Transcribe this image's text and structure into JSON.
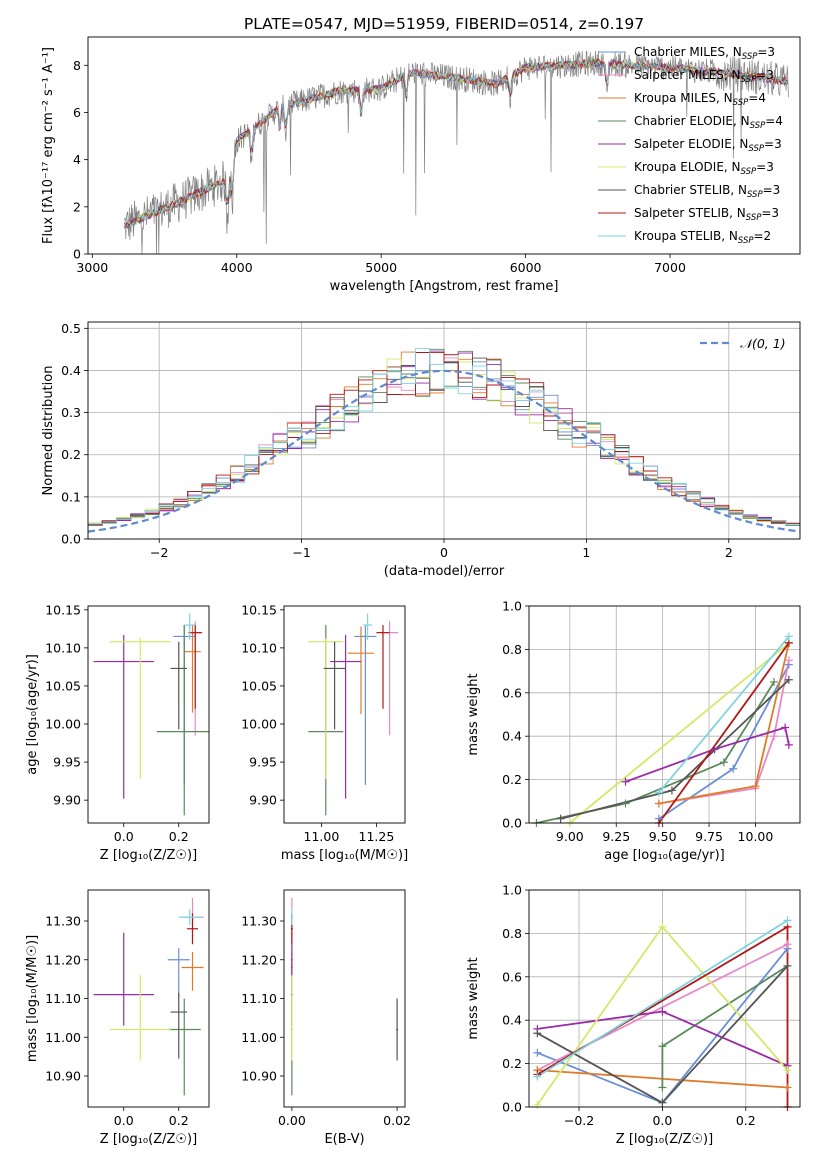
{
  "figure": {
    "title": "PLATE=0547, MJD=51959, FIBERID=0514, z=0.197"
  },
  "colors": {
    "chabrier_miles": "#6a8fd8",
    "salpeter_miles": "#e88ac6",
    "kroupa_miles": "#e07b2a",
    "chabrier_elodie": "#5a8a5a",
    "salpeter_elodie": "#9b2aa8",
    "kroupa_elodie": "#d4e86a",
    "chabrier_stelib": "#555555",
    "salpeter_stelib": "#b01818",
    "kroupa_stelib": "#7fd4e0",
    "normal": "#5f8ad0"
  },
  "legend_top": [
    {
      "text": "Chabrier MILES, N",
      "sub": "SSP",
      "tail": "=3",
      "color_key": "chabrier_miles"
    },
    {
      "text": "Salpeter MILES, N",
      "sub": "SSP",
      "tail": "=3",
      "color_key": "salpeter_miles"
    },
    {
      "text": "Kroupa MILES, N",
      "sub": "SSP",
      "tail": "=4",
      "color_key": "kroupa_miles"
    },
    {
      "text": "Chabrier ELODIE, N",
      "sub": "SSP",
      "tail": "=4",
      "color_key": "chabrier_elodie"
    },
    {
      "text": "Salpeter ELODIE, N",
      "sub": "SSP",
      "tail": "=3",
      "color_key": "salpeter_elodie"
    },
    {
      "text": "Kroupa ELODIE, N",
      "sub": "SSP",
      "tail": "=3",
      "color_key": "kroupa_elodie"
    },
    {
      "text": "Chabrier STELIB, N",
      "sub": "SSP",
      "tail": "=3",
      "color_key": "chabrier_stelib"
    },
    {
      "text": "Salpeter STELIB, N",
      "sub": "SSP",
      "tail": "=3",
      "color_key": "salpeter_stelib"
    },
    {
      "text": "Kroupa STELIB, N",
      "sub": "SSP",
      "tail": "=2",
      "color_key": "kroupa_stelib"
    }
  ],
  "legend_hist": {
    "label": "𝒩(0, 1)"
  },
  "chart_data": [
    {
      "id": "spectrum",
      "type": "line",
      "xlabel": "wavelength [Angstrom, rest frame]",
      "ylabel": "Flux [fλ10⁻¹⁷ erg cm⁻² s⁻¹ A⁻¹]",
      "xlim": [
        2970,
        7900
      ],
      "ylim": [
        0,
        9.2
      ],
      "xticks": [
        3000,
        4000,
        5000,
        6000,
        7000
      ],
      "yticks": [
        0,
        2,
        4,
        6,
        8
      ],
      "spectrum_start": 3220,
      "spectrum_end": 7820,
      "continuum": [
        [
          3220,
          1.2
        ],
        [
          3600,
          2.2
        ],
        [
          3950,
          3.2
        ],
        [
          4000,
          4.8
        ],
        [
          4300,
          6.2
        ],
        [
          4700,
          6.9
        ],
        [
          5000,
          7.0
        ],
        [
          5200,
          7.7
        ],
        [
          5600,
          7.4
        ],
        [
          5800,
          7.2
        ],
        [
          6000,
          7.9
        ],
        [
          6500,
          8.1
        ],
        [
          7000,
          7.9
        ],
        [
          7500,
          7.6
        ],
        [
          7820,
          7.3
        ]
      ],
      "absorption_lines": [
        [
          3934,
          1.6
        ],
        [
          3969,
          1.7
        ],
        [
          4102,
          1.4
        ],
        [
          4300,
          1.0
        ],
        [
          4340,
          1.2
        ],
        [
          4861,
          1.3
        ],
        [
          5175,
          1.2
        ],
        [
          5893,
          1.0
        ],
        [
          6563,
          1.3
        ]
      ],
      "x_step": 4,
      "noise_amplitude": 0.7
    },
    {
      "id": "residuals",
      "type": "bar",
      "xlabel": "(data-model)/error",
      "ylabel": "Normed distribution",
      "xlim": [
        -2.5,
        2.5
      ],
      "ylim": [
        0,
        0.515
      ],
      "xticks": [
        -2,
        -1,
        0,
        1,
        2
      ],
      "yticks": [
        0.0,
        0.1,
        0.2,
        0.3,
        0.4,
        0.5
      ],
      "grid": true,
      "bin_width": 0.1,
      "normal_curve": {
        "mu": 0,
        "sigma": 1
      }
    },
    {
      "id": "age_vs_Z",
      "type": "scatter",
      "xlabel": "Z [log₁₀(Z/Z☉)]",
      "ylabel": "age  [log₁₀(age/yr)]",
      "xlim": [
        -0.13,
        0.31
      ],
      "ylim": [
        9.87,
        10.155
      ],
      "xticks": [
        0.0,
        0.2
      ],
      "yticks": [
        9.9,
        9.95,
        10.0,
        10.05,
        10.1,
        10.15
      ],
      "points": [
        {
          "model": "chabrier_miles",
          "x": 0.22,
          "xerr": 0.04,
          "y": 10.115,
          "yerr": [
            0.195,
            0.015
          ]
        },
        {
          "model": "salpeter_miles",
          "x": 0.26,
          "xerr": 0.02,
          "y": 10.12,
          "yerr": [
            0.135,
            0.015
          ]
        },
        {
          "model": "kroupa_miles",
          "x": 0.25,
          "xerr": 0.03,
          "y": 10.095,
          "yerr": [
            0.08,
            0.035
          ]
        },
        {
          "model": "chabrier_elodie",
          "x": 0.22,
          "xerr": 0.1,
          "y": 9.99,
          "yerr": [
            0.11,
            0.14
          ]
        },
        {
          "model": "salpeter_elodie",
          "x": 0.0,
          "xerr": 0.11,
          "y": 10.082,
          "yerr": [
            0.18,
            0.035
          ]
        },
        {
          "model": "kroupa_elodie",
          "x": 0.06,
          "xerr": 0.11,
          "y": 10.108,
          "yerr": [
            0.18,
            0.005
          ]
        },
        {
          "model": "chabrier_stelib",
          "x": 0.2,
          "xerr": 0.03,
          "y": 10.073,
          "yerr": [
            0.08,
            0.035
          ]
        },
        {
          "model": "salpeter_stelib",
          "x": 0.26,
          "xerr": 0.025,
          "y": 10.12,
          "yerr": [
            0.1,
            0.01
          ]
        },
        {
          "model": "kroupa_stelib",
          "x": 0.24,
          "xerr": 0.02,
          "y": 10.13,
          "yerr": [
            0.02,
            0.015
          ]
        }
      ]
    },
    {
      "id": "age_vs_mass",
      "type": "scatter",
      "xlabel": "mass [log₁₀(M/M☉)]",
      "ylabel": "",
      "xlim": [
        10.83,
        11.38
      ],
      "ylim": [
        9.87,
        10.155
      ],
      "xticks": [
        11.0,
        11.25
      ],
      "yticks": [
        9.9,
        9.95,
        10.0,
        10.05,
        10.1,
        10.15
      ],
      "points": [
        {
          "model": "chabrier_miles",
          "x": 11.2,
          "xerr": 0.05,
          "y": 10.115,
          "yerr": [
            0.195,
            0.015
          ]
        },
        {
          "model": "salpeter_miles",
          "x": 11.31,
          "xerr": 0.04,
          "y": 10.12,
          "yerr": [
            0.135,
            0.015
          ]
        },
        {
          "model": "kroupa_miles",
          "x": 11.18,
          "xerr": 0.06,
          "y": 10.093,
          "yerr": [
            0.08,
            0.035
          ]
        },
        {
          "model": "chabrier_elodie",
          "x": 11.02,
          "xerr": 0.08,
          "y": 9.99,
          "yerr": [
            0.11,
            0.14
          ]
        },
        {
          "model": "salpeter_elodie",
          "x": 11.11,
          "xerr": 0.07,
          "y": 10.082,
          "yerr": [
            0.18,
            0.035
          ]
        },
        {
          "model": "kroupa_elodie",
          "x": 11.02,
          "xerr": 0.08,
          "y": 10.108,
          "yerr": [
            0.18,
            0.005
          ]
        },
        {
          "model": "chabrier_stelib",
          "x": 11.06,
          "xerr": 0.05,
          "y": 10.073,
          "yerr": [
            0.08,
            0.035
          ]
        },
        {
          "model": "salpeter_stelib",
          "x": 11.28,
          "xerr": 0.03,
          "y": 10.12,
          "yerr": [
            0.1,
            0.01
          ]
        },
        {
          "model": "kroupa_stelib",
          "x": 11.21,
          "xerr": 0.02,
          "y": 10.13,
          "yerr": [
            0.02,
            0.015
          ]
        }
      ]
    },
    {
      "id": "weight_vs_age",
      "type": "line",
      "xlabel": "age  [log₁₀(age/yr)]",
      "ylabel": "mass weight",
      "xlim": [
        8.78,
        10.24
      ],
      "ylim": [
        0,
        1.0
      ],
      "xticks": [
        9.0,
        9.25,
        9.5,
        9.75,
        10.0
      ],
      "yticks": [
        0.0,
        0.2,
        0.4,
        0.6,
        0.8,
        1.0
      ],
      "grid": true,
      "series": [
        {
          "model": "chabrier_miles",
          "points": [
            [
              9.48,
              0.02
            ],
            [
              9.88,
              0.25
            ],
            [
              10.18,
              0.73
            ]
          ]
        },
        {
          "model": "salpeter_miles",
          "points": [
            [
              9.48,
              0.09
            ],
            [
              10.0,
              0.16
            ],
            [
              10.1,
              0.4
            ],
            [
              10.18,
              0.75
            ]
          ]
        },
        {
          "model": "kroupa_miles",
          "points": [
            [
              9.48,
              0.09
            ],
            [
              10.0,
              0.17
            ],
            [
              10.18,
              0.83
            ]
          ]
        },
        {
          "model": "chabrier_elodie",
          "points": [
            [
              8.82,
              0.0
            ],
            [
              9.3,
              0.09
            ],
            [
              9.83,
              0.28
            ],
            [
              10.1,
              0.65
            ]
          ]
        },
        {
          "model": "salpeter_elodie",
          "points": [
            [
              9.3,
              0.19
            ],
            [
              9.78,
              0.34
            ],
            [
              10.16,
              0.44
            ],
            [
              10.18,
              0.36
            ]
          ]
        },
        {
          "model": "kroupa_elodie",
          "points": [
            [
              9.0,
              0.0
            ],
            [
              10.18,
              0.83
            ]
          ]
        },
        {
          "model": "chabrier_stelib",
          "points": [
            [
              8.95,
              0.02
            ],
            [
              9.55,
              0.15
            ],
            [
              10.18,
              0.66
            ]
          ]
        },
        {
          "model": "salpeter_stelib",
          "points": [
            [
              9.48,
              0.0
            ],
            [
              10.18,
              0.83
            ]
          ]
        },
        {
          "model": "kroupa_stelib",
          "points": [
            [
              9.48,
              0.14
            ],
            [
              10.18,
              0.86
            ]
          ]
        }
      ]
    },
    {
      "id": "mass_vs_Z",
      "type": "scatter",
      "xlabel": "Z [log₁₀(Z/Z☉)]",
      "ylabel": "mass [log₁₀(M/M☉)]",
      "xlim": [
        -0.13,
        0.31
      ],
      "ylim": [
        10.82,
        11.38
      ],
      "xticks": [
        0.0,
        0.2
      ],
      "yticks": [
        10.9,
        11.0,
        11.1,
        11.2,
        11.3
      ],
      "points": [
        {
          "model": "chabrier_miles",
          "x": 0.2,
          "xerr": 0.04,
          "y": 11.2,
          "yerr": [
            0.1,
            0.03
          ]
        },
        {
          "model": "salpeter_miles",
          "x": 0.25,
          "xerr": 0.04,
          "y": 11.31,
          "yerr": [
            0.06,
            0.05
          ]
        },
        {
          "model": "kroupa_miles",
          "x": 0.25,
          "xerr": 0.04,
          "y": 11.18,
          "yerr": [
            0.06,
            0.04
          ]
        },
        {
          "model": "chabrier_elodie",
          "x": 0.22,
          "xerr": 0.06,
          "y": 11.02,
          "yerr": [
            0.17,
            0.08
          ]
        },
        {
          "model": "salpeter_elodie",
          "x": 0.0,
          "xerr": 0.11,
          "y": 11.11,
          "yerr": [
            0.08,
            0.16
          ]
        },
        {
          "model": "kroupa_elodie",
          "x": 0.06,
          "xerr": 0.11,
          "y": 11.02,
          "yerr": [
            0.08,
            0.14
          ]
        },
        {
          "model": "chabrier_stelib",
          "x": 0.2,
          "xerr": 0.03,
          "y": 11.065,
          "yerr": [
            0.12,
            0.05
          ]
        },
        {
          "model": "salpeter_stelib",
          "x": 0.25,
          "xerr": 0.02,
          "y": 11.28,
          "yerr": [
            0.04,
            0.04
          ]
        },
        {
          "model": "kroupa_stelib",
          "x": 0.24,
          "xerr": 0.04,
          "y": 11.31,
          "yerr": [
            0.02,
            0.02
          ]
        }
      ]
    },
    {
      "id": "mass_vs_ebv",
      "type": "scatter",
      "xlabel": "E(B-V)",
      "ylabel": "",
      "xlim": [
        -0.0015,
        0.0215
      ],
      "ylim": [
        10.82,
        11.38
      ],
      "xticks": [
        0.0,
        0.02
      ],
      "yticks": [
        10.9,
        11.0,
        11.1,
        11.2,
        11.3
      ],
      "points": [
        {
          "model": "chabrier_miles",
          "x": 0.0,
          "xerr": 0.0002,
          "y": 11.2,
          "yerr": [
            0.1,
            0.03
          ]
        },
        {
          "model": "salpeter_miles",
          "x": 0.0,
          "xerr": 0.0002,
          "y": 11.31,
          "yerr": [
            0.06,
            0.05
          ]
        },
        {
          "model": "kroupa_miles",
          "x": 0.0,
          "xerr": 0.0002,
          "y": 11.18,
          "yerr": [
            0.06,
            0.04
          ]
        },
        {
          "model": "chabrier_elodie",
          "x": 0.0,
          "xerr": 0.0002,
          "y": 11.02,
          "yerr": [
            0.17,
            0.08
          ]
        },
        {
          "model": "salpeter_elodie",
          "x": 0.0,
          "xerr": 0.0002,
          "y": 11.11,
          "yerr": [
            0.08,
            0.16
          ]
        },
        {
          "model": "kroupa_elodie",
          "x": 0.0,
          "xerr": 0.0002,
          "y": 11.02,
          "yerr": [
            0.08,
            0.14
          ]
        },
        {
          "model": "chabrier_stelib",
          "x": 0.02,
          "xerr": 0.0002,
          "y": 11.02,
          "yerr": [
            0.08,
            0.08
          ]
        },
        {
          "model": "salpeter_stelib",
          "x": 0.0,
          "xerr": 0.0002,
          "y": 11.28,
          "yerr": [
            0.04,
            0.04
          ]
        },
        {
          "model": "kroupa_stelib",
          "x": 0.0,
          "xerr": 0.0002,
          "y": 11.31,
          "yerr": [
            0.02,
            0.02
          ]
        }
      ]
    },
    {
      "id": "weight_vs_Z",
      "type": "line",
      "xlabel": "Z [log₁₀(Z/Z☉)]",
      "ylabel": "mass weight",
      "xlim": [
        -0.32,
        0.33
      ],
      "ylim": [
        0,
        1.0
      ],
      "xticks": [
        -0.2,
        0.0,
        0.2
      ],
      "yticks": [
        0.0,
        0.2,
        0.4,
        0.6,
        0.8,
        1.0
      ],
      "grid": true,
      "series": [
        {
          "model": "chabrier_miles",
          "points": [
            [
              -0.3,
              0.25
            ],
            [
              0.0,
              0.02
            ],
            [
              0.3,
              0.73
            ]
          ]
        },
        {
          "model": "salpeter_miles",
          "points": [
            [
              -0.3,
              0.17
            ],
            [
              0.3,
              0.75
            ]
          ]
        },
        {
          "model": "kroupa_miles",
          "points": [
            [
              -0.3,
              0.17
            ],
            [
              0.3,
              0.09
            ]
          ]
        },
        {
          "model": "chabrier_elodie",
          "points": [
            [
              0.0,
              0.09
            ],
            [
              0.0,
              0.28
            ],
            [
              0.3,
              0.65
            ]
          ]
        },
        {
          "model": "salpeter_elodie",
          "points": [
            [
              -0.3,
              0.36
            ],
            [
              0.0,
              0.44
            ],
            [
              0.3,
              0.19
            ]
          ]
        },
        {
          "model": "kroupa_elodie",
          "points": [
            [
              -0.3,
              0.01
            ],
            [
              0.0,
              0.83
            ],
            [
              0.3,
              0.17
            ]
          ]
        },
        {
          "model": "chabrier_stelib",
          "points": [
            [
              -0.3,
              0.34
            ],
            [
              0.0,
              0.02
            ],
            [
              0.3,
              0.65
            ]
          ]
        },
        {
          "model": "salpeter_stelib",
          "points": [
            [
              -0.3,
              0.15
            ],
            [
              0.3,
              0.83
            ],
            [
              0.3,
              0.0
            ]
          ]
        },
        {
          "model": "kroupa_stelib",
          "points": [
            [
              -0.3,
              0.14
            ],
            [
              0.3,
              0.86
            ]
          ]
        }
      ]
    }
  ]
}
